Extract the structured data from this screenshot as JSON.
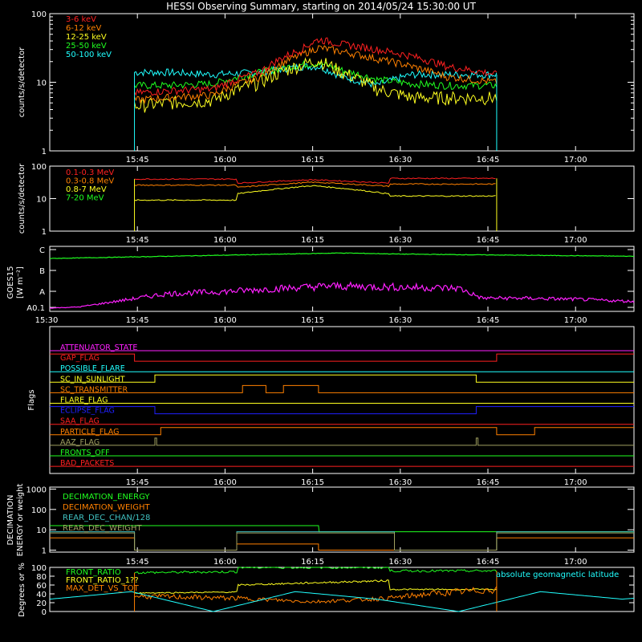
{
  "title": "HESSI Observing Summary, starting on 2014/05/24 15:30:00 UT",
  "colors": {
    "red": "#ff2020",
    "orange": "#ff8000",
    "yellow": "#ffff20",
    "green": "#20ff20",
    "cyan": "#20ffff",
    "magenta": "#ff20ff",
    "blue": "#2020ff",
    "olive": "#a0a060",
    "white": "#ffffff",
    "gray": "#bbbbbb",
    "teal": "#40c0c0"
  },
  "chart_data": [
    {
      "id": "hxr-rates",
      "type": "line",
      "ylabel": "counts/s/detector",
      "log_y": true,
      "ylim": [
        1,
        100
      ],
      "y_ticks": [
        "1",
        "10",
        "100"
      ],
      "x_ticks": [
        "15:45",
        "16:00",
        "16:15",
        "16:30",
        "16:45",
        "17:00"
      ],
      "x_tick_minutes": [
        15,
        30,
        45,
        60,
        75,
        90
      ],
      "xlim_minutes": [
        0,
        100
      ],
      "data_window_minutes": [
        14.5,
        76.5
      ],
      "series": [
        {
          "name": "3-6 keV",
          "color": "red",
          "x": [
            14.5,
            20,
            28,
            36,
            43,
            46,
            50,
            56,
            62,
            68,
            76.5
          ],
          "y": [
            7,
            7.5,
            8,
            14,
            30,
            42,
            36,
            30,
            24,
            17,
            13
          ]
        },
        {
          "name": "6-12 keV",
          "color": "orange",
          "x": [
            14.5,
            20,
            28,
            36,
            43,
            46,
            50,
            56,
            62,
            68,
            76.5
          ],
          "y": [
            5.5,
            6,
            6.5,
            12,
            25,
            32,
            28,
            22,
            17,
            12,
            10
          ]
        },
        {
          "name": "12-25 keV",
          "color": "yellow",
          "x": [
            14.5,
            20,
            28,
            36,
            43,
            46,
            50,
            56,
            62,
            68,
            76.5
          ],
          "y": [
            4.5,
            5,
            5.5,
            10,
            18,
            21,
            14,
            8,
            6,
            6,
            6
          ]
        },
        {
          "name": "25-50 keV",
          "color": "green",
          "x": [
            14.5,
            20,
            28,
            36,
            43,
            46,
            50,
            56,
            62,
            68,
            76.5
          ],
          "y": [
            9,
            9,
            9.5,
            14,
            18,
            19,
            15,
            11,
            9.5,
            9,
            9
          ]
        },
        {
          "name": "50-100 keV",
          "color": "cyan",
          "x": [
            14.5,
            20,
            28,
            36,
            43,
            46,
            50,
            56,
            62,
            68,
            76.5
          ],
          "y": [
            14,
            14,
            13,
            14,
            17,
            17,
            12,
            9,
            13,
            13,
            13
          ]
        }
      ]
    },
    {
      "id": "gamma-rates",
      "type": "line",
      "ylabel": "counts/s/detector",
      "log_y": true,
      "ylim": [
        1,
        100
      ],
      "y_ticks": [
        "1",
        "10",
        "100"
      ],
      "x_ticks": [
        "15:45",
        "16:00",
        "16:15",
        "16:30",
        "16:45",
        "17:00"
      ],
      "x_tick_minutes": [
        15,
        30,
        45,
        60,
        75,
        90
      ],
      "xlim_minutes": [
        0,
        100
      ],
      "series": [
        {
          "name": "0.1-0.3 MeV",
          "color": "red",
          "x": [
            14.5,
            32,
            32.1,
            45,
            58,
            58.1,
            76.5
          ],
          "y": [
            40,
            40,
            30,
            38,
            30,
            42,
            42
          ]
        },
        {
          "name": "0.3-0.8 MeV",
          "color": "orange",
          "x": [
            14.5,
            32,
            32.1,
            45,
            58,
            58.1,
            76.5
          ],
          "y": [
            26,
            26,
            22,
            32,
            24,
            28,
            28
          ]
        },
        {
          "name": "0.8-7 MeV",
          "color": "yellow",
          "x": [
            14.5,
            32,
            32.1,
            45,
            58,
            58.1,
            76.5
          ],
          "y": [
            9,
            9,
            14,
            25,
            14,
            12,
            12
          ]
        },
        {
          "name": "7-20 MeV",
          "color": "green",
          "x": [
            14.5,
            76.5
          ],
          "y": [
            20,
            20
          ]
        }
      ]
    },
    {
      "id": "goes",
      "type": "line",
      "ylabel": "GOES15",
      "ylabel2": "[W m⁻²]",
      "y_ticks": [
        "A0.1",
        "A",
        "B",
        "C"
      ],
      "x_ticks": [
        "15:30",
        "15:45",
        "16:00",
        "16:15",
        "16:30",
        "16:45",
        "17:00"
      ],
      "x_tick_minutes": [
        0,
        15,
        30,
        45,
        60,
        75,
        90
      ],
      "series": [
        {
          "name": "GOES long",
          "color": "green",
          "x": [
            0,
            20,
            40,
            50,
            60,
            80,
            100
          ],
          "y": [
            2.3,
            2.4,
            2.5,
            2.55,
            2.5,
            2.45,
            2.4
          ]
        },
        {
          "name": "GOES short",
          "color": "magenta",
          "x": [
            0,
            5,
            10,
            20,
            30,
            40,
            48,
            60,
            70,
            74,
            80,
            90,
            100
          ],
          "y": [
            0.05,
            0.1,
            0.3,
            0.7,
            0.8,
            0.95,
            1.05,
            1.0,
            0.95,
            0.5,
            0.5,
            0.45,
            0.35
          ]
        }
      ]
    },
    {
      "id": "flags",
      "type": "line",
      "ylabel": "Flags",
      "x_ticks": [
        "15:45",
        "16:00",
        "16:15",
        "16:30",
        "16:45",
        "17:00"
      ],
      "x_tick_minutes": [
        15,
        30,
        45,
        60,
        75,
        90
      ],
      "flags": [
        {
          "name": "ATTENUATOR_STATE",
          "color": "magenta",
          "steps": [
            [
              0,
              0
            ]
          ]
        },
        {
          "name": "GAP_FLAG",
          "color": "red",
          "steps": [
            [
              0,
              1
            ],
            [
              14.5,
              0
            ],
            [
              76.5,
              1
            ]
          ]
        },
        {
          "name": "POSSIBLE_FLARE",
          "color": "cyan",
          "steps": [
            [
              0,
              0
            ]
          ]
        },
        {
          "name": "SC_IN_SUNLIGHT",
          "color": "yellow",
          "steps": [
            [
              0,
              0
            ],
            [
              18,
              1
            ],
            [
              73,
              0
            ]
          ]
        },
        {
          "name": "SC_TRANSMITTER",
          "color": "orange",
          "steps": [
            [
              0,
              0
            ],
            [
              33,
              1
            ],
            [
              37,
              0
            ],
            [
              40,
              1
            ],
            [
              46,
              0
            ]
          ]
        },
        {
          "name": "FLARE_FLAG",
          "color": "yellow",
          "steps": [
            [
              0,
              0
            ]
          ]
        },
        {
          "name": "ECLIPSE_FLAG",
          "color": "blue",
          "steps": [
            [
              0,
              1
            ],
            [
              18,
              0
            ],
            [
              73,
              1
            ]
          ]
        },
        {
          "name": "SAA_FLAG",
          "color": "red",
          "steps": [
            [
              0,
              0
            ]
          ]
        },
        {
          "name": "PARTICLE_FLAG",
          "color": "orange",
          "steps": [
            [
              0,
              0
            ],
            [
              19,
              1
            ],
            [
              76.5,
              0
            ],
            [
              83,
              1
            ]
          ]
        },
        {
          "name": "AAZ_FLAG",
          "color": "olive",
          "steps": [
            [
              0,
              0
            ],
            [
              18,
              1
            ],
            [
              18.3,
              0
            ],
            [
              73,
              1
            ],
            [
              73.3,
              0
            ]
          ]
        },
        {
          "name": "FRONTS_OFF",
          "color": "green",
          "steps": [
            [
              0,
              0
            ]
          ]
        },
        {
          "name": "BAD_PACKETS",
          "color": "red",
          "steps": [
            [
              0,
              0
            ]
          ]
        }
      ]
    },
    {
      "id": "decimation",
      "type": "line",
      "ylabel": "DECIMATION",
      "ylabel2": "ENERGY or weight",
      "log_y": true,
      "y_ticks": [
        "1",
        "10",
        "100",
        "1000"
      ],
      "x_ticks": [
        "15:45",
        "16:00",
        "16:15",
        "16:30",
        "16:45",
        "17:00"
      ],
      "x_tick_minutes": [
        15,
        30,
        45,
        60,
        75,
        90
      ],
      "series": [
        {
          "name": "DECIMATION_ENERGY",
          "color": "green",
          "x": [
            0,
            46,
            46.1,
            100
          ],
          "y": [
            16,
            16,
            8,
            8
          ]
        },
        {
          "name": "DECIMATION_WEIGHT",
          "color": "orange",
          "x": [
            0,
            14.5,
            14.5,
            32,
            32,
            46,
            46,
            76.5,
            76.5,
            100
          ],
          "y": [
            4,
            4,
            1,
            1,
            2,
            2,
            1,
            1,
            4,
            4
          ]
        },
        {
          "name": "REAR_DEC_CHAN/128",
          "color": "teal",
          "x": [
            0,
            14.5,
            14.5,
            32,
            32,
            59,
            59,
            76.5,
            76.5,
            100
          ],
          "y": [
            8,
            8,
            1,
            1,
            8,
            8,
            1,
            1,
            8,
            8
          ]
        },
        {
          "name": "REAR_DEC_WEIGHT",
          "color": "olive",
          "x": [
            0,
            14.5,
            14.5,
            32,
            32,
            59,
            59,
            76.5,
            76.5,
            100
          ],
          "y": [
            7,
            7,
            1,
            1,
            7,
            7,
            1,
            1,
            7,
            7
          ]
        }
      ]
    },
    {
      "id": "ratios",
      "type": "line",
      "ylabel": "Degrees or %",
      "ylim": [
        0,
        100
      ],
      "y_ticks": [
        "0",
        "20",
        "40",
        "60",
        "80",
        "100"
      ],
      "x_ticks": [
        "15:45",
        "16:00",
        "16:15",
        "16:30",
        "16:45",
        "17:00"
      ],
      "x_tick_minutes": [
        15,
        30,
        45,
        60,
        75,
        90
      ],
      "series": [
        {
          "name": "FRONT_RATIO",
          "color": "green",
          "x": [
            14.5,
            32,
            32.1,
            58,
            58.1,
            76.5
          ],
          "y": [
            88,
            90,
            100,
            100,
            92,
            92
          ]
        },
        {
          "name": "FRONT_RATIO_1??",
          "color": "yellow",
          "x": [
            14.5,
            32,
            32.1,
            58,
            58.1,
            76.5
          ],
          "y": [
            42,
            44,
            60,
            70,
            50,
            50
          ]
        },
        {
          "name": "MAX_DET_VS_TOT",
          "color": "orange",
          "x": [
            14.5,
            32,
            45,
            58,
            65,
            76.5
          ],
          "y": [
            35,
            30,
            22,
            30,
            40,
            50
          ]
        },
        {
          "name": "absolute geomagnetic latitude",
          "color": "cyan",
          "x": [
            0,
            14,
            28,
            42,
            56,
            70,
            84,
            98,
            100
          ],
          "y": [
            28,
            45,
            0,
            45,
            28,
            0,
            45,
            28,
            30
          ]
        }
      ]
    }
  ]
}
